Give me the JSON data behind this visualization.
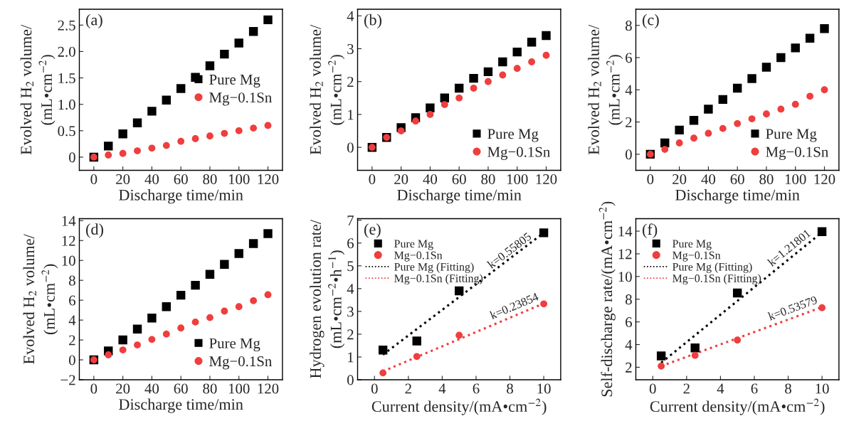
{
  "chart_data": [
    {
      "type": "scatter",
      "xlabel": "Discharge time/min",
      "ylabel": "Evolved H$_{2}$ volume/\n(mL•cm$^{−2}$)",
      "annotations": [
        "(a)"
      ],
      "x": [
        0,
        10,
        20,
        30,
        40,
        50,
        60,
        70,
        80,
        90,
        100,
        110,
        120
      ],
      "xlim": [
        -10,
        130
      ],
      "xticks": [
        0,
        20,
        40,
        60,
        80,
        100,
        120
      ],
      "ylim": [
        -0.25,
        2.8
      ],
      "yticks": [
        {
          "value": 0,
          "label": "0"
        },
        0.5,
        {
          "value": 1,
          "label": "1.0"
        },
        1.5,
        {
          "value": 2,
          "label": "2.0"
        },
        2.5
      ],
      "legend": "right",
      "series": [
        {
          "name": "Pure Mg",
          "color": "#000000",
          "marker": "square",
          "values": [
            0,
            0.21,
            0.44,
            0.65,
            0.87,
            1.08,
            1.3,
            1.51,
            1.73,
            1.95,
            2.16,
            2.38,
            2.6
          ]
        },
        {
          "name": "Mg−0.1Sn",
          "color": "#ef3e3e",
          "marker": "circle",
          "values": [
            0,
            0.04,
            0.07,
            0.12,
            0.17,
            0.22,
            0.3,
            0.35,
            0.4,
            0.45,
            0.5,
            0.55,
            0.6
          ]
        }
      ]
    },
    {
      "type": "scatter",
      "xlabel": "Discharge time/min",
      "ylabel": "Evolved H$_{2}$ volume/\n(mL•cm$^{−2}$)",
      "annotations": [
        "(b)"
      ],
      "x": [
        0,
        10,
        20,
        30,
        40,
        50,
        60,
        70,
        80,
        90,
        100,
        110,
        120
      ],
      "xlim": [
        -10,
        130
      ],
      "xticks": [
        0,
        20,
        40,
        60,
        80,
        100,
        120
      ],
      "ylim": [
        -0.7,
        4.2
      ],
      "yticks": [
        0,
        1,
        2,
        3,
        4
      ],
      "legend": "lower right",
      "series": [
        {
          "name": "Pure Mg",
          "color": "#000000",
          "marker": "square",
          "values": [
            0,
            0.3,
            0.6,
            0.9,
            1.2,
            1.5,
            1.8,
            2.1,
            2.3,
            2.6,
            2.9,
            3.2,
            3.4
          ]
        },
        {
          "name": "Mg−0.1Sn",
          "color": "#ef3e3e",
          "marker": "circle",
          "values": [
            0,
            0.3,
            0.5,
            0.8,
            1.0,
            1.3,
            1.5,
            1.8,
            2.0,
            2.2,
            2.4,
            2.6,
            2.8
          ]
        }
      ]
    },
    {
      "type": "scatter",
      "xlabel": "Discharge time/min",
      "ylabel": "Evolved H$_{2}$ volume/\n(mL•cm$^{−2}$)",
      "annotations": [
        "(c)"
      ],
      "x": [
        0,
        10,
        20,
        30,
        40,
        50,
        60,
        70,
        80,
        90,
        100,
        110,
        120
      ],
      "xlim": [
        -10,
        130
      ],
      "xticks": [
        0,
        20,
        40,
        60,
        80,
        100,
        120
      ],
      "ylim": [
        -1,
        9
      ],
      "yticks": [
        0,
        2,
        4,
        6,
        8
      ],
      "legend": "lower right",
      "series": [
        {
          "name": "Pure Mg",
          "color": "#000000",
          "marker": "square",
          "values": [
            0,
            0.7,
            1.5,
            2.1,
            2.8,
            3.4,
            4.1,
            4.7,
            5.4,
            6.0,
            6.6,
            7.2,
            7.8
          ]
        },
        {
          "name": "Mg−0.1Sn",
          "color": "#ef3e3e",
          "marker": "circle",
          "values": [
            0,
            0.3,
            0.7,
            1.0,
            1.3,
            1.6,
            1.9,
            2.2,
            2.5,
            2.8,
            3.1,
            3.6,
            4.0
          ]
        }
      ]
    },
    {
      "type": "scatter",
      "xlabel": "Discharge time/min",
      "ylabel": "Evolved H$_{2}$ volume/\n(mL•cm$^{−2}$)",
      "annotations": [
        "(d)"
      ],
      "x": [
        0,
        10,
        20,
        30,
        40,
        50,
        60,
        70,
        80,
        90,
        100,
        110,
        120
      ],
      "xlim": [
        -10,
        130
      ],
      "xticks": [
        0,
        20,
        40,
        60,
        80,
        100,
        120
      ],
      "ylim": [
        -2,
        14.2
      ],
      "yticks": [
        {
          "value": -2,
          "label": "−2"
        },
        0,
        2,
        4,
        6,
        8,
        10,
        12,
        14
      ],
      "legend": "lower right",
      "series": [
        {
          "name": "Pure Mg",
          "color": "#000000",
          "marker": "square",
          "values": [
            0,
            0.9,
            2.0,
            3.1,
            4.2,
            5.35,
            6.5,
            7.5,
            8.6,
            9.6,
            10.7,
            11.7,
            12.7
          ]
        },
        {
          "name": "Mg−0.1Sn",
          "color": "#ef3e3e",
          "marker": "circle",
          "values": [
            0,
            0.5,
            1.0,
            1.5,
            2.05,
            2.6,
            3.2,
            3.8,
            4.25,
            4.9,
            5.35,
            5.95,
            6.55
          ]
        }
      ]
    },
    {
      "type": "scatter",
      "xlabel": "Current density/(mA•cm$^{−2}$)",
      "ylabel": "Hydrogen evolution rate/\n(mL•cm$^{−2}$•h$^{−1}$)",
      "annotations": [
        "(e)",
        {
          "text": "k=0.55805",
          "x": 8.2,
          "y": 5.32
        },
        {
          "text": "k=0.23854",
          "x": 8.4,
          "y": 2.85
        }
      ],
      "x": [
        0.5,
        2.5,
        5,
        10
      ],
      "xlim": [
        -1,
        11
      ],
      "xticks": [
        0,
        2,
        4,
        6,
        8,
        10
      ],
      "ylim": [
        0,
        7.07
      ],
      "yticks": [
        0,
        1,
        2,
        3,
        4,
        5,
        6,
        7
      ],
      "legend": "upper left",
      "series": [
        {
          "name": "Pure Mg",
          "color": "#000000",
          "marker": "square",
          "values": [
            1.3,
            1.7,
            3.9,
            6.45
          ]
        },
        {
          "name": "Mg−0.1Sn",
          "color": "#ef3e3e",
          "marker": "circle",
          "values": [
            0.3,
            1.02,
            1.95,
            3.33
          ]
        },
        {
          "name": "Pure Mg (Fitting)",
          "type": "line",
          "line_style": "dotted",
          "color": "#000000",
          "x": [
            0.5,
            5,
            10
          ],
          "values": [
            1.1,
            3.63,
            6.45
          ]
        },
        {
          "name": "Mg−0.1Sn (Fitting)",
          "type": "line",
          "line_style": "dotted",
          "color": "#ef3e3e",
          "x": [
            0.5,
            5,
            10
          ],
          "values": [
            0.37,
            1.78,
            3.35
          ]
        }
      ]
    },
    {
      "type": "scatter",
      "xlabel": "Current density/(mA•cm$^{−2}$)",
      "ylabel": "Self-discharge rate/(mA•cm$^{−2}$)",
      "annotations": [
        "(f)",
        {
          "text": "k=1.21801",
          "x": 8.3,
          "y": 11.84
        },
        {
          "text": "k=0.53579",
          "x": 8.4,
          "y": 6.42
        }
      ],
      "x": [
        0.5,
        2.5,
        5,
        10
      ],
      "xlim": [
        -1,
        11
      ],
      "xticks": [
        0,
        2,
        4,
        6,
        8,
        10
      ],
      "ylim": [
        0.9,
        15.1
      ],
      "yticks": [
        2,
        4,
        6,
        8,
        10,
        12,
        14
      ],
      "legend": "upper left",
      "series": [
        {
          "name": "Pure Mg",
          "color": "#000000",
          "marker": "square",
          "values": [
            3.0,
            3.7,
            8.55,
            13.95
          ]
        },
        {
          "name": "Mg−0.1Sn",
          "color": "#ef3e3e",
          "marker": "circle",
          "values": [
            2.1,
            3.05,
            4.4,
            7.25
          ]
        },
        {
          "name": "Pure Mg (Fitting)",
          "type": "line",
          "line_style": "dotted",
          "color": "#000000",
          "x": [
            0.5,
            5,
            10
          ],
          "values": [
            2.4,
            7.85,
            13.9
          ]
        },
        {
          "name": "Mg−0.1Sn (Fitting)",
          "type": "line",
          "line_style": "dotted",
          "color": "#ef3e3e",
          "x": [
            0.5,
            5,
            10
          ],
          "values": [
            2.1,
            4.56,
            7.3
          ]
        }
      ]
    }
  ]
}
